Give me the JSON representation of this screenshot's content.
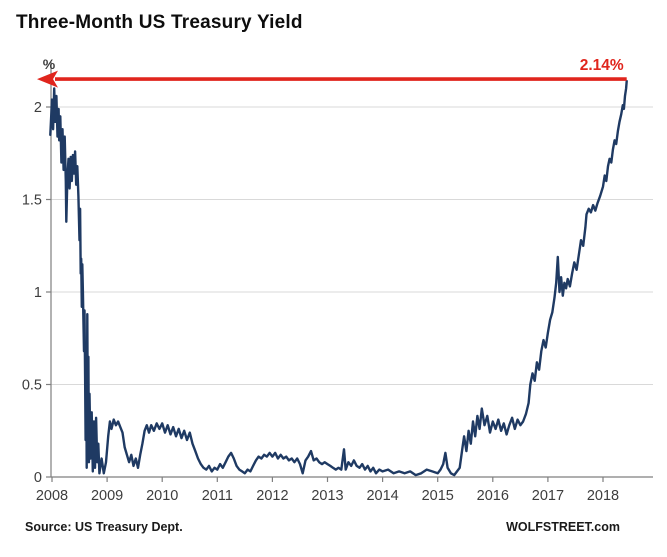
{
  "chart_data": {
    "type": "line",
    "title": "Three-Month US Treasury Yield",
    "ylabel": "%",
    "xlabel": "",
    "legend": "none",
    "grid": "horizontal-only",
    "x_range": [
      2007.95,
      2018.92
    ],
    "y_range": [
      0,
      2.24
    ],
    "x_ticks": [
      "2008",
      "2009",
      "2010",
      "2011",
      "2012",
      "2013",
      "2014",
      "2015",
      "2016",
      "2017",
      "2018"
    ],
    "x_tick_values": [
      2008,
      2009,
      2010,
      2011,
      2012,
      2013,
      2014,
      2015,
      2016,
      2017,
      2018
    ],
    "y_ticks": [
      "0",
      "0.5",
      "1",
      "1.5",
      "2"
    ],
    "y_tick_values": [
      0,
      0.5,
      1,
      1.5,
      2
    ],
    "annotation": {
      "label": "2.14%",
      "value": 2.14,
      "type": "left-arrow-callout"
    },
    "series": [
      {
        "name": "3-Month US Treasury Yield",
        "points": [
          [
            2007.97,
            1.85
          ],
          [
            2008.0,
            2.04
          ],
          [
            2008.02,
            1.88
          ],
          [
            2008.04,
            2.1
          ],
          [
            2008.06,
            1.92
          ],
          [
            2008.08,
            2.06
          ],
          [
            2008.1,
            1.84
          ],
          [
            2008.12,
            1.99
          ],
          [
            2008.13,
            1.82
          ],
          [
            2008.15,
            1.95
          ],
          [
            2008.17,
            1.7
          ],
          [
            2008.19,
            1.88
          ],
          [
            2008.21,
            1.66
          ],
          [
            2008.23,
            1.84
          ],
          [
            2008.25,
            1.6
          ],
          [
            2008.26,
            1.38
          ],
          [
            2008.28,
            1.62
          ],
          [
            2008.3,
            1.72
          ],
          [
            2008.32,
            1.56
          ],
          [
            2008.34,
            1.73
          ],
          [
            2008.36,
            1.6
          ],
          [
            2008.38,
            1.74
          ],
          [
            2008.4,
            1.64
          ],
          [
            2008.42,
            1.76
          ],
          [
            2008.44,
            1.58
          ],
          [
            2008.46,
            1.68
          ],
          [
            2008.48,
            1.52
          ],
          [
            2008.5,
            1.28
          ],
          [
            2008.51,
            1.45
          ],
          [
            2008.52,
            1.1
          ],
          [
            2008.53,
            1.18
          ],
          [
            2008.54,
            0.92
          ],
          [
            2008.55,
            1.15
          ],
          [
            2008.56,
            1.0
          ],
          [
            2008.58,
            0.68
          ],
          [
            2008.59,
            0.9
          ],
          [
            2008.6,
            0.55
          ],
          [
            2008.61,
            0.2
          ],
          [
            2008.62,
            0.7
          ],
          [
            2008.63,
            0.05
          ],
          [
            2008.64,
            0.88
          ],
          [
            2008.65,
            0.3
          ],
          [
            2008.66,
            0.65
          ],
          [
            2008.67,
            0.08
          ],
          [
            2008.68,
            0.45
          ],
          [
            2008.7,
            0.1
          ],
          [
            2008.72,
            0.35
          ],
          [
            2008.74,
            0.03
          ],
          [
            2008.76,
            0.3
          ],
          [
            2008.78,
            0.05
          ],
          [
            2008.8,
            0.32
          ],
          [
            2008.82,
            0.08
          ],
          [
            2008.84,
            0.18
          ],
          [
            2008.86,
            0.02
          ],
          [
            2008.9,
            0.1
          ],
          [
            2008.94,
            0.02
          ],
          [
            2008.98,
            0.08
          ],
          [
            2009.02,
            0.22
          ],
          [
            2009.05,
            0.3
          ],
          [
            2009.08,
            0.26
          ],
          [
            2009.12,
            0.31
          ],
          [
            2009.16,
            0.28
          ],
          [
            2009.2,
            0.3
          ],
          [
            2009.24,
            0.27
          ],
          [
            2009.28,
            0.24
          ],
          [
            2009.32,
            0.16
          ],
          [
            2009.36,
            0.12
          ],
          [
            2009.4,
            0.08
          ],
          [
            2009.44,
            0.12
          ],
          [
            2009.48,
            0.06
          ],
          [
            2009.52,
            0.1
          ],
          [
            2009.56,
            0.05
          ],
          [
            2009.6,
            0.12
          ],
          [
            2009.64,
            0.18
          ],
          [
            2009.68,
            0.25
          ],
          [
            2009.72,
            0.28
          ],
          [
            2009.76,
            0.24
          ],
          [
            2009.8,
            0.28
          ],
          [
            2009.85,
            0.25
          ],
          [
            2009.9,
            0.29
          ],
          [
            2009.95,
            0.26
          ],
          [
            2010.0,
            0.29
          ],
          [
            2010.05,
            0.24
          ],
          [
            2010.1,
            0.28
          ],
          [
            2010.15,
            0.23
          ],
          [
            2010.2,
            0.27
          ],
          [
            2010.25,
            0.22
          ],
          [
            2010.3,
            0.26
          ],
          [
            2010.35,
            0.21
          ],
          [
            2010.4,
            0.25
          ],
          [
            2010.45,
            0.2
          ],
          [
            2010.5,
            0.24
          ],
          [
            2010.55,
            0.18
          ],
          [
            2010.6,
            0.14
          ],
          [
            2010.65,
            0.1
          ],
          [
            2010.7,
            0.07
          ],
          [
            2010.75,
            0.05
          ],
          [
            2010.8,
            0.04
          ],
          [
            2010.85,
            0.06
          ],
          [
            2010.9,
            0.03
          ],
          [
            2010.95,
            0.05
          ],
          [
            2011.0,
            0.04
          ],
          [
            2011.05,
            0.07
          ],
          [
            2011.1,
            0.05
          ],
          [
            2011.15,
            0.08
          ],
          [
            2011.2,
            0.11
          ],
          [
            2011.25,
            0.13
          ],
          [
            2011.3,
            0.1
          ],
          [
            2011.35,
            0.06
          ],
          [
            2011.4,
            0.04
          ],
          [
            2011.45,
            0.03
          ],
          [
            2011.5,
            0.02
          ],
          [
            2011.55,
            0.04
          ],
          [
            2011.6,
            0.03
          ],
          [
            2011.65,
            0.06
          ],
          [
            2011.7,
            0.09
          ],
          [
            2011.75,
            0.11
          ],
          [
            2011.8,
            0.1
          ],
          [
            2011.85,
            0.12
          ],
          [
            2011.9,
            0.11
          ],
          [
            2011.95,
            0.13
          ],
          [
            2012.0,
            0.11
          ],
          [
            2012.05,
            0.13
          ],
          [
            2012.1,
            0.1
          ],
          [
            2012.15,
            0.12
          ],
          [
            2012.2,
            0.1
          ],
          [
            2012.25,
            0.11
          ],
          [
            2012.3,
            0.09
          ],
          [
            2012.35,
            0.1
          ],
          [
            2012.4,
            0.08
          ],
          [
            2012.45,
            0.1
          ],
          [
            2012.5,
            0.07
          ],
          [
            2012.55,
            0.02
          ],
          [
            2012.6,
            0.09
          ],
          [
            2012.65,
            0.11
          ],
          [
            2012.7,
            0.14
          ],
          [
            2012.75,
            0.09
          ],
          [
            2012.8,
            0.1
          ],
          [
            2012.85,
            0.08
          ],
          [
            2012.9,
            0.07
          ],
          [
            2012.95,
            0.08
          ],
          [
            2013.0,
            0.07
          ],
          [
            2013.05,
            0.06
          ],
          [
            2013.1,
            0.05
          ],
          [
            2013.15,
            0.04
          ],
          [
            2013.2,
            0.05
          ],
          [
            2013.25,
            0.04
          ],
          [
            2013.3,
            0.15
          ],
          [
            2013.33,
            0.04
          ],
          [
            2013.38,
            0.08
          ],
          [
            2013.43,
            0.06
          ],
          [
            2013.48,
            0.09
          ],
          [
            2013.53,
            0.06
          ],
          [
            2013.58,
            0.05
          ],
          [
            2013.63,
            0.07
          ],
          [
            2013.68,
            0.04
          ],
          [
            2013.73,
            0.06
          ],
          [
            2013.78,
            0.03
          ],
          [
            2013.83,
            0.05
          ],
          [
            2013.88,
            0.02
          ],
          [
            2013.94,
            0.04
          ],
          [
            2014.0,
            0.03
          ],
          [
            2014.1,
            0.04
          ],
          [
            2014.2,
            0.02
          ],
          [
            2014.3,
            0.03
          ],
          [
            2014.4,
            0.02
          ],
          [
            2014.5,
            0.03
          ],
          [
            2014.6,
            0.01
          ],
          [
            2014.7,
            0.02
          ],
          [
            2014.8,
            0.04
          ],
          [
            2014.9,
            0.03
          ],
          [
            2015.0,
            0.02
          ],
          [
            2015.05,
            0.04
          ],
          [
            2015.1,
            0.07
          ],
          [
            2015.14,
            0.13
          ],
          [
            2015.18,
            0.05
          ],
          [
            2015.24,
            0.02
          ],
          [
            2015.3,
            0.01
          ],
          [
            2015.35,
            0.03
          ],
          [
            2015.4,
            0.05
          ],
          [
            2015.45,
            0.16
          ],
          [
            2015.48,
            0.22
          ],
          [
            2015.52,
            0.14
          ],
          [
            2015.56,
            0.25
          ],
          [
            2015.6,
            0.18
          ],
          [
            2015.64,
            0.3
          ],
          [
            2015.68,
            0.22
          ],
          [
            2015.72,
            0.33
          ],
          [
            2015.76,
            0.26
          ],
          [
            2015.8,
            0.37
          ],
          [
            2015.85,
            0.28
          ],
          [
            2015.9,
            0.33
          ],
          [
            2015.95,
            0.24
          ],
          [
            2016.0,
            0.3
          ],
          [
            2016.05,
            0.26
          ],
          [
            2016.1,
            0.31
          ],
          [
            2016.15,
            0.25
          ],
          [
            2016.2,
            0.29
          ],
          [
            2016.25,
            0.23
          ],
          [
            2016.3,
            0.28
          ],
          [
            2016.35,
            0.32
          ],
          [
            2016.4,
            0.26
          ],
          [
            2016.45,
            0.31
          ],
          [
            2016.5,
            0.28
          ],
          [
            2016.55,
            0.3
          ],
          [
            2016.6,
            0.34
          ],
          [
            2016.65,
            0.4
          ],
          [
            2016.68,
            0.5
          ],
          [
            2016.72,
            0.56
          ],
          [
            2016.76,
            0.52
          ],
          [
            2016.8,
            0.62
          ],
          [
            2016.84,
            0.58
          ],
          [
            2016.88,
            0.68
          ],
          [
            2016.92,
            0.74
          ],
          [
            2016.96,
            0.7
          ],
          [
            2017.0,
            0.78
          ],
          [
            2017.04,
            0.85
          ],
          [
            2017.08,
            0.89
          ],
          [
            2017.12,
            0.97
          ],
          [
            2017.15,
            1.05
          ],
          [
            2017.18,
            1.19
          ],
          [
            2017.21,
            1.0
          ],
          [
            2017.24,
            1.08
          ],
          [
            2017.27,
            0.98
          ],
          [
            2017.3,
            1.05
          ],
          [
            2017.33,
            1.02
          ],
          [
            2017.36,
            1.07
          ],
          [
            2017.4,
            1.03
          ],
          [
            2017.44,
            1.1
          ],
          [
            2017.48,
            1.16
          ],
          [
            2017.52,
            1.12
          ],
          [
            2017.56,
            1.2
          ],
          [
            2017.6,
            1.28
          ],
          [
            2017.64,
            1.25
          ],
          [
            2017.68,
            1.35
          ],
          [
            2017.7,
            1.42
          ],
          [
            2017.74,
            1.45
          ],
          [
            2017.78,
            1.43
          ],
          [
            2017.82,
            1.47
          ],
          [
            2017.86,
            1.44
          ],
          [
            2017.9,
            1.48
          ],
          [
            2017.95,
            1.52
          ],
          [
            2018.0,
            1.57
          ],
          [
            2018.03,
            1.63
          ],
          [
            2018.06,
            1.6
          ],
          [
            2018.09,
            1.68
          ],
          [
            2018.12,
            1.72
          ],
          [
            2018.15,
            1.7
          ],
          [
            2018.18,
            1.77
          ],
          [
            2018.21,
            1.82
          ],
          [
            2018.24,
            1.8
          ],
          [
            2018.27,
            1.87
          ],
          [
            2018.3,
            1.92
          ],
          [
            2018.33,
            1.96
          ],
          [
            2018.36,
            2.01
          ],
          [
            2018.38,
            1.99
          ],
          [
            2018.4,
            2.06
          ],
          [
            2018.42,
            2.1
          ],
          [
            2018.43,
            2.14
          ]
        ]
      }
    ]
  },
  "footer": {
    "source": "Source: US Treasury Dept.",
    "branding": "WOLFSTREET.com"
  },
  "colors": {
    "line": "#1f3a63",
    "accent_red": "#e0251d",
    "grid": "#d9d9d9",
    "axis": "#7f7f7f",
    "tick_text": "#3d3d3d",
    "title_text": "#0d0d0d"
  }
}
